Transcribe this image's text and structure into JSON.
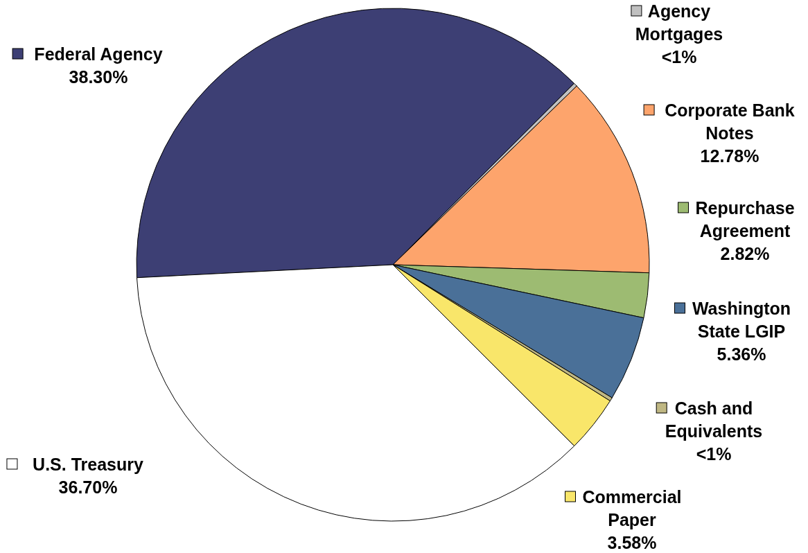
{
  "chart_data": {
    "type": "pie",
    "categories": [
      "Federal Agency",
      "Agency Mortgages",
      "Corporate Bank Notes",
      "Repurchase Agreement",
      "Washington State LGIP",
      "Cash and Equivalents",
      "Commercial Paper",
      "U.S. Treasury"
    ],
    "values": [
      38.3,
      0.23,
      12.78,
      2.82,
      5.36,
      0.23,
      3.58,
      36.7
    ],
    "value_labels": [
      "38.30%",
      "<1%",
      "12.78%",
      "2.82%",
      "5.36%",
      "<1%",
      "3.58%",
      "36.70%"
    ],
    "legend": "right",
    "colors": [
      "#3d3f74",
      "#c0c0c0",
      "#fda46c",
      "#9dbb72",
      "#4a7098",
      "#bfb783",
      "#f9e66a",
      "#ffffff"
    ]
  }
}
